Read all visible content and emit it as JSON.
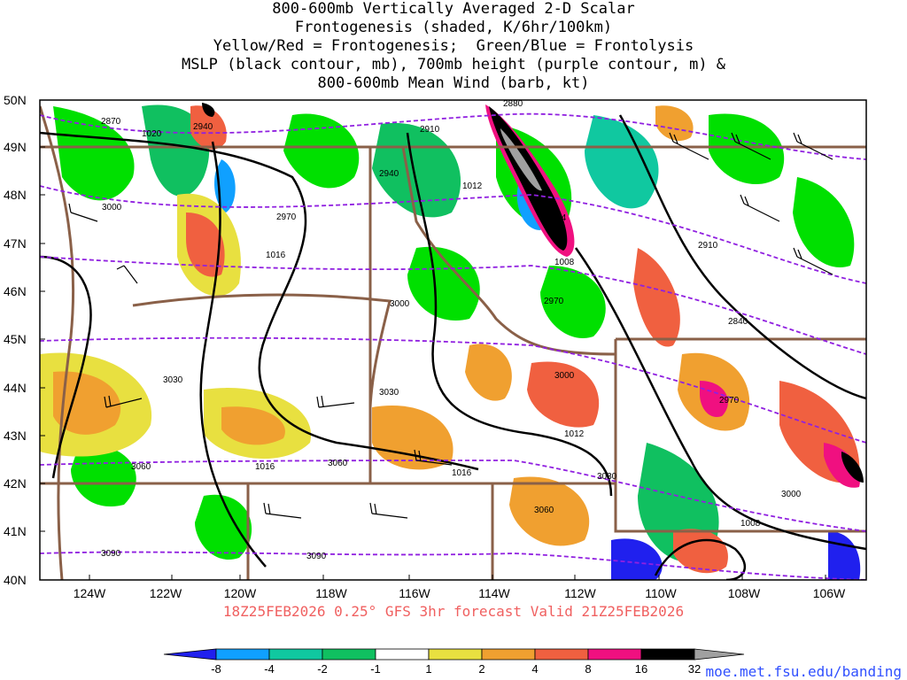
{
  "title_lines": [
    "800-600mb Vertically Averaged 2-D Scalar",
    "Frontogenesis (shaded, K/6hr/100km)",
    "Yellow/Red = Frontogenesis;  Green/Blue = Frontolysis",
    "MSLP (black contour, mb), 700mb height (purple contour, m) &",
    "800-600mb Mean Wind (barb, kt)"
  ],
  "lat_labels": [
    "50N",
    "49N",
    "48N",
    "47N",
    "46N",
    "45N",
    "44N",
    "43N",
    "42N",
    "41N",
    "40N"
  ],
  "lon_labels": [
    "124W",
    "122W",
    "120W",
    "118W",
    "116W",
    "114W",
    "112W",
    "110W",
    "108W",
    "106W"
  ],
  "footer": "18Z25FEB2026 0.25° GFS 3hr forecast Valid 21Z25FEB2026",
  "credit": "moe.met.fsu.edu/banding",
  "colorbar": {
    "ticks": [
      "-8",
      "-4",
      "-2",
      "-1",
      "1",
      "2",
      "4",
      "8",
      "16",
      "32"
    ],
    "colors": [
      "#2020ee",
      "#10a0ff",
      "#10c8a0",
      "#10c060",
      "#00e000",
      "#ffffff",
      "#e8e040",
      "#f0a030",
      "#f06040",
      "#f01080",
      "#000000",
      "#a0a0a0"
    ]
  },
  "contour_labels": {
    "mslp": [
      "1020",
      "1016",
      "1012",
      "1008",
      "1004",
      "1012",
      "1016",
      "1016",
      "1008",
      "1012"
    ],
    "height": [
      "2870",
      "2940",
      "2910",
      "2880",
      "3000",
      "2970",
      "2940",
      "2910",
      "3000",
      "2970",
      "2840",
      "3030",
      "3030",
      "3000",
      "2970",
      "3060",
      "3060",
      "3060",
      "3030",
      "3000",
      "3090",
      "3090"
    ]
  },
  "legend_colors": {
    "mslp_contour": "#000000",
    "height_contour": "#9020e0",
    "borders": "#8a6048"
  }
}
